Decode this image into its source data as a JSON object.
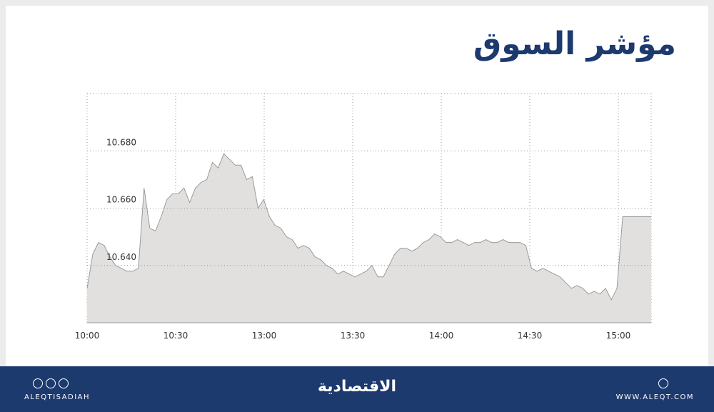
{
  "header": {
    "title": "مؤشر السوق"
  },
  "chart_data": {
    "type": "area",
    "x_tick_labels": [
      "10:00",
      "10:30",
      "13:00",
      "13:30",
      "14:00",
      "14:30",
      "15:00"
    ],
    "series": [
      {
        "color": "#e2e0de",
        "values": [
          10.632,
          10.644,
          10.648,
          10.647,
          10.643,
          10.64,
          10.639,
          10.638,
          10.638,
          10.639,
          10.667,
          10.653,
          10.652,
          10.657,
          10.663,
          10.665,
          10.665,
          10.667,
          10.662,
          10.667,
          10.669,
          10.67,
          10.676,
          10.674,
          10.679,
          10.677,
          10.675,
          10.675,
          10.67,
          10.671,
          10.66,
          10.663,
          10.657,
          10.654,
          10.653,
          10.65,
          10.649,
          10.646,
          10.647,
          10.646,
          10.643,
          10.642,
          10.64,
          10.639,
          10.637,
          10.638,
          10.637,
          10.636,
          10.637,
          10.638,
          10.64,
          10.636,
          10.636,
          10.64,
          10.644,
          10.646,
          10.646,
          10.645,
          10.646,
          10.648,
          10.649,
          10.651,
          10.65,
          10.648,
          10.648,
          10.649,
          10.648,
          10.647,
          10.648,
          10.648,
          10.649,
          10.648,
          10.648,
          10.649,
          10.648,
          10.648,
          10.648,
          10.647,
          10.639,
          10.638,
          10.639,
          10.638,
          10.637,
          10.636,
          10.634,
          10.632,
          10.633,
          10.632,
          10.63,
          10.631,
          10.63,
          10.632,
          10.628,
          10.632,
          10.657,
          10.657,
          10.657,
          10.657,
          10.657,
          10.657
        ]
      }
    ],
    "ylim": [
      10.62,
      10.7
    ],
    "yticks": [
      {
        "value": 10.64,
        "label": "10.640"
      },
      {
        "value": 10.66,
        "label": "10.660"
      },
      {
        "value": 10.68,
        "label": "10.680"
      }
    ],
    "grid": true
  },
  "footer": {
    "left": "ALEQTISADIAH",
    "logo": "الاقتصادية",
    "right": "WWW.ALEQT.COM"
  }
}
